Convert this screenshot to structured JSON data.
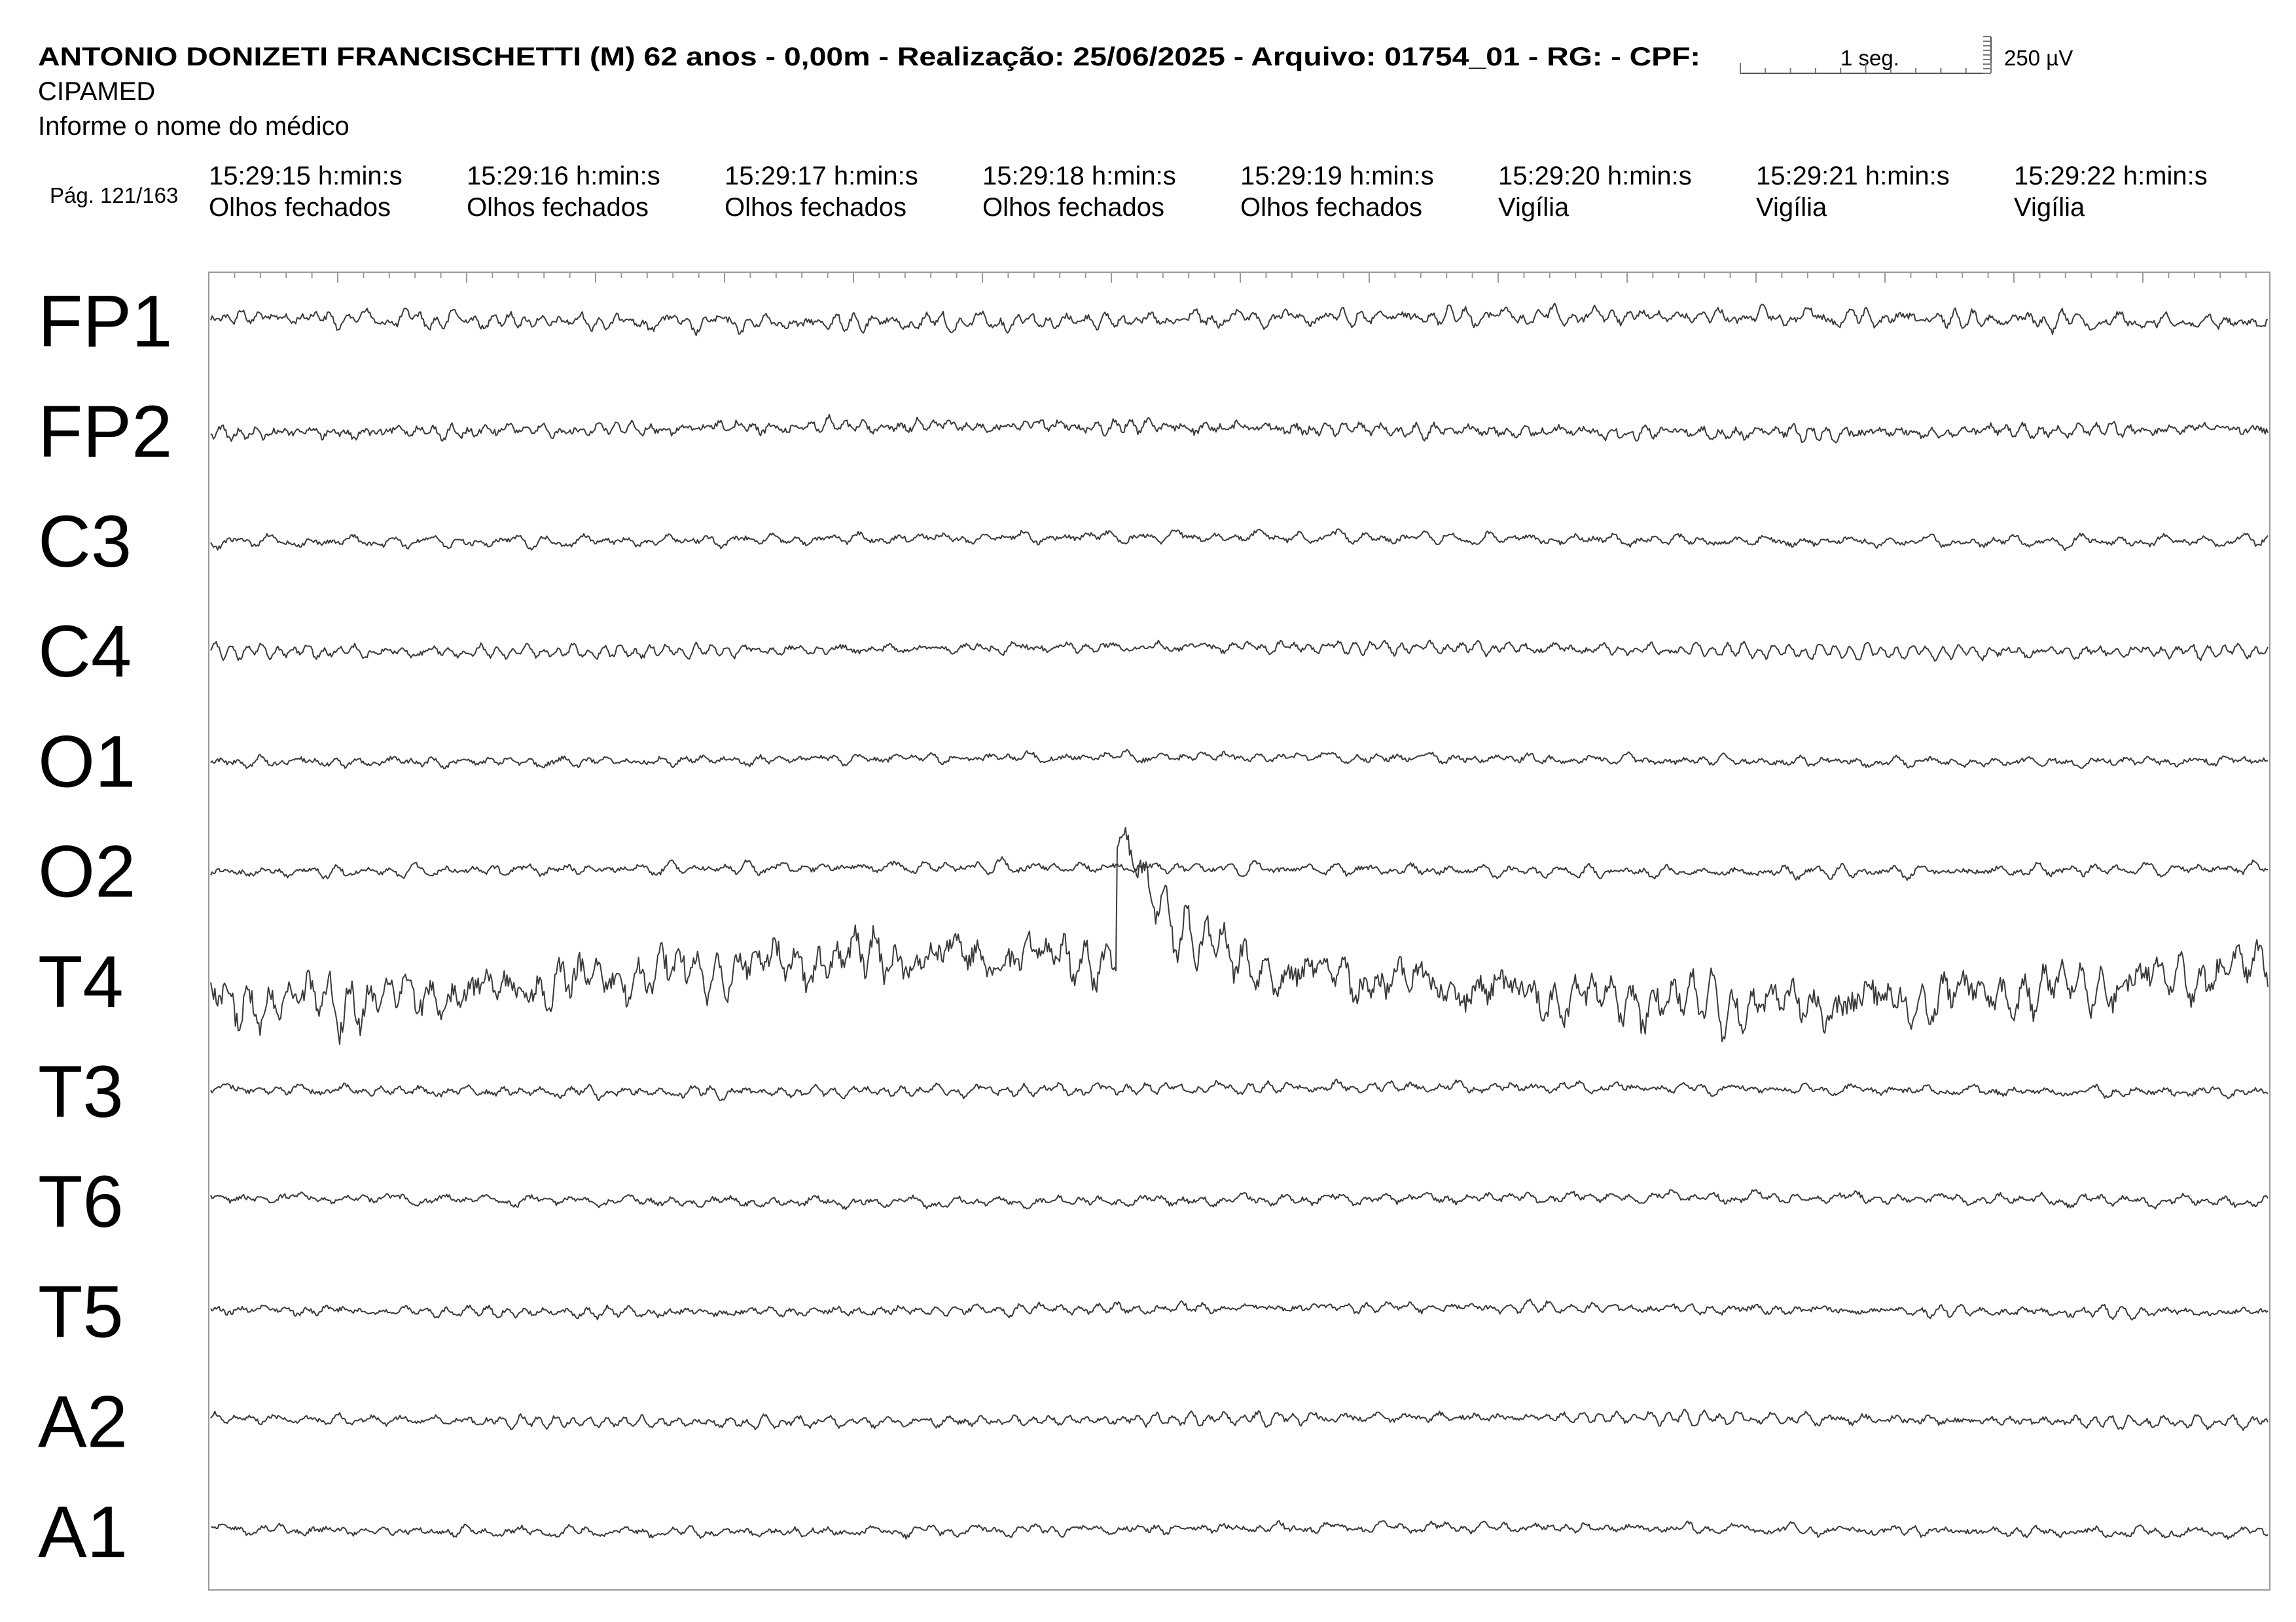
{
  "header": {
    "title": "ANTONIO DONIZETI FRANCISCHETTI (M) 62 anos - 0,00m - Realização: 25/06/2025 - Arquivo: 01754_01 - RG:  - CPF:",
    "institution": "CIPAMED",
    "doctor": "Informe o nome do médico",
    "page": "Pág. 121/163"
  },
  "scale": {
    "time": "1 seg.",
    "amplitude": "250 µV"
  },
  "timeline": [
    {
      "time": "15:29:15 h:min:s",
      "state": "Olhos fechados"
    },
    {
      "time": "15:29:16 h:min:s",
      "state": "Olhos fechados"
    },
    {
      "time": "15:29:17 h:min:s",
      "state": "Olhos fechados"
    },
    {
      "time": "15:29:18 h:min:s",
      "state": "Olhos fechados"
    },
    {
      "time": "15:29:19 h:min:s",
      "state": "Olhos fechados"
    },
    {
      "time": "15:29:20 h:min:s",
      "state": "Vigília"
    },
    {
      "time": "15:29:21 h:min:s",
      "state": "Vigília"
    },
    {
      "time": "15:29:22 h:min:s",
      "state": "Vigília"
    }
  ],
  "channels": [
    "FP1",
    "FP2",
    "C3",
    "C4",
    "O1",
    "O2",
    "T4",
    "T3",
    "T6",
    "T5",
    "A2",
    "A1"
  ]
}
